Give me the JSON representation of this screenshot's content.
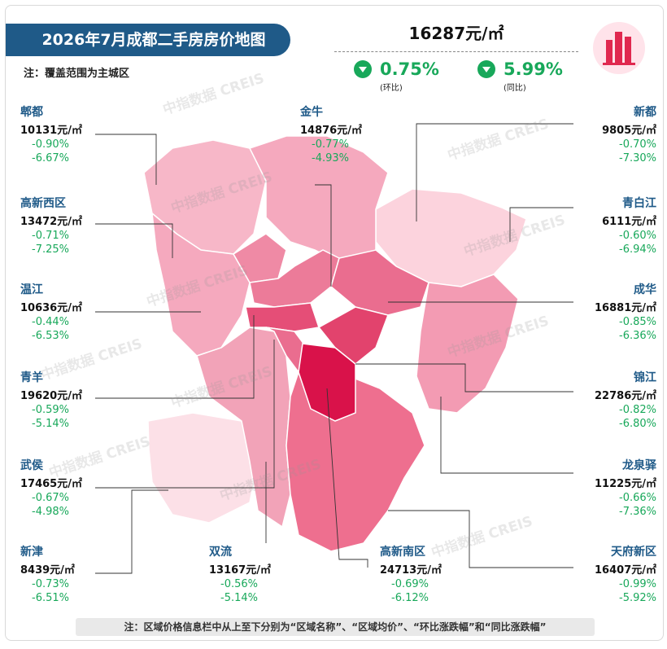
{
  "header": {
    "title": "2026年7月成都二手房房价地图",
    "scope_note": "注：覆盖范围为主城区"
  },
  "summary": {
    "avg_price": "16287元/㎡",
    "mom_change": "0.75%",
    "mom_label": "(环比)",
    "yoy_change": "5.99%",
    "yoy_label": "(同比)"
  },
  "watermark": "中指数据 CREIS",
  "colors": {
    "accent": "#1f5a88",
    "down": "#18a85a",
    "map_light": "#fcd3dd",
    "map_mid": "#f39bb3",
    "map_dark": "#e54e77",
    "map_darkest": "#d9124a"
  },
  "districts": [
    {
      "id": "pidu",
      "name": "郫都",
      "price": "10131元/㎡",
      "mom": "-0.90%",
      "yoy": "-6.67%"
    },
    {
      "id": "gaoxinxi",
      "name": "高新西区",
      "price": "13472元/㎡",
      "mom": "-0.71%",
      "yoy": "-7.25%"
    },
    {
      "id": "wenjiang",
      "name": "温江",
      "price": "10636元/㎡",
      "mom": "-0.44%",
      "yoy": "-6.53%"
    },
    {
      "id": "qingyang",
      "name": "青羊",
      "price": "19620元/㎡",
      "mom": "-0.59%",
      "yoy": "-5.14%"
    },
    {
      "id": "wuhou",
      "name": "武侯",
      "price": "17465元/㎡",
      "mom": "-0.67%",
      "yoy": "-4.98%"
    },
    {
      "id": "xinjin",
      "name": "新津",
      "price": "8439元/㎡",
      "mom": "-0.73%",
      "yoy": "-6.51%"
    },
    {
      "id": "jinniu",
      "name": "金牛",
      "price": "14876元/㎡",
      "mom": "-0.77%",
      "yoy": "-4.93%"
    },
    {
      "id": "shuangliu",
      "name": "双流",
      "price": "13167元/㎡",
      "mom": "-0.56%",
      "yoy": "-5.14%"
    },
    {
      "id": "gaoxinnan",
      "name": "高新南区",
      "price": "24713元/㎡",
      "mom": "-0.69%",
      "yoy": "-6.12%"
    },
    {
      "id": "xindu",
      "name": "新都",
      "price": "9805元/㎡",
      "mom": "-0.70%",
      "yoy": "-7.30%"
    },
    {
      "id": "qingbaijiang",
      "name": "青白江",
      "price": "6111元/㎡",
      "mom": "-0.60%",
      "yoy": "-6.94%"
    },
    {
      "id": "chenghua",
      "name": "成华",
      "price": "16881元/㎡",
      "mom": "-0.85%",
      "yoy": "-6.36%"
    },
    {
      "id": "jinjiang",
      "name": "锦江",
      "price": "22786元/㎡",
      "mom": "-0.82%",
      "yoy": "-6.80%"
    },
    {
      "id": "longquanyi",
      "name": "龙泉驿",
      "price": "11225元/㎡",
      "mom": "-0.66%",
      "yoy": "-7.36%"
    },
    {
      "id": "tianfu",
      "name": "天府新区",
      "price": "16407元/㎡",
      "mom": "-0.99%",
      "yoy": "-5.92%"
    }
  ],
  "footer_note": "注：区域价格信息栏中从上至下分别为“区域名称”、“区域均价”、“环比涨跌幅”和“同比涨跌幅”"
}
